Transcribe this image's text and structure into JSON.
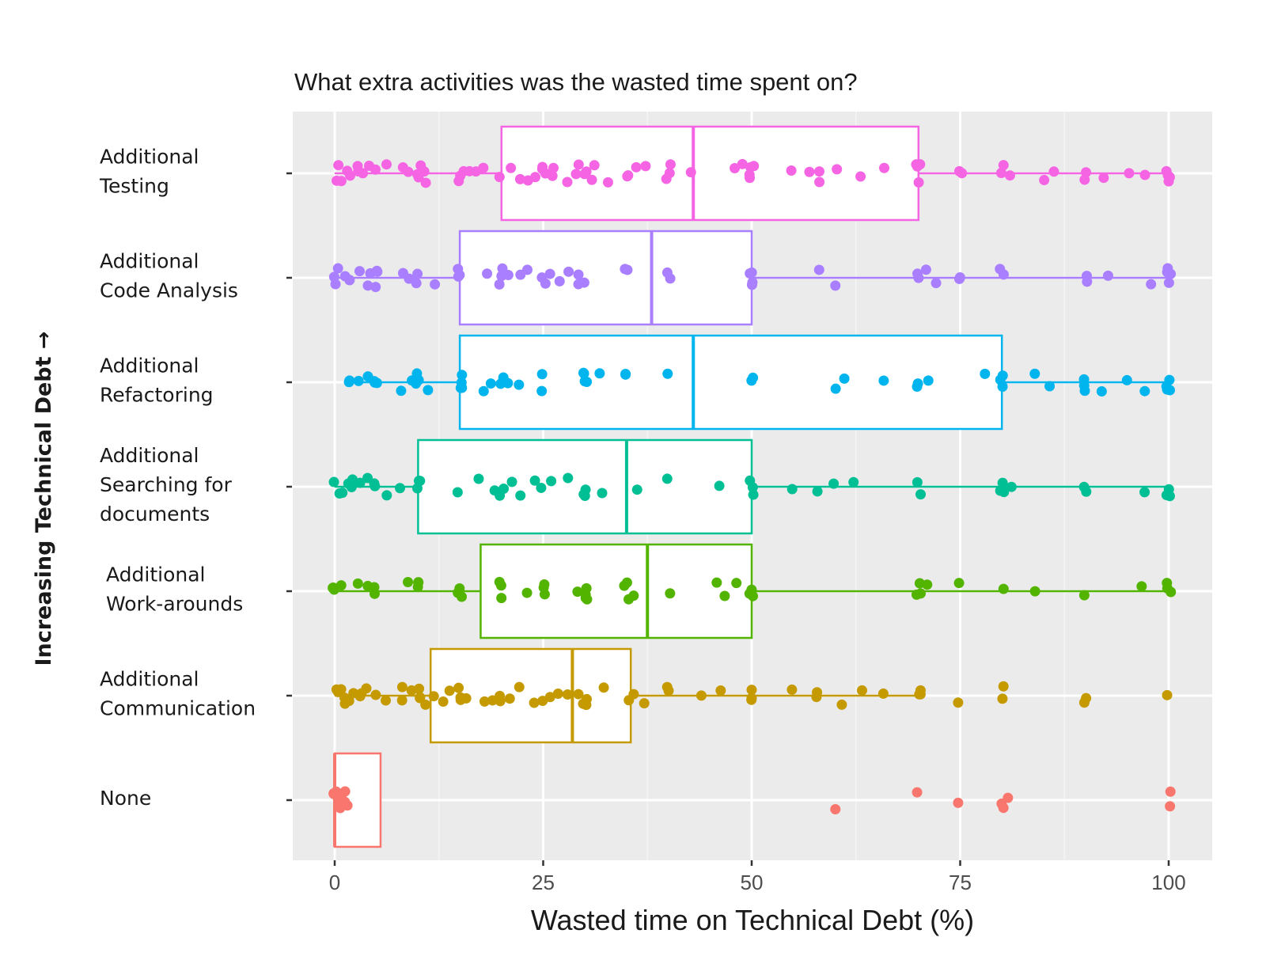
{
  "chart_data": {
    "type": "boxplot",
    "title": "What extra activities was the wasted time spent on?",
    "xlabel": "Wasted time on Technical Debt (%)",
    "ylabel": "Increasing Technical Debt →",
    "xlim": [
      -4,
      106
    ],
    "xticks": [
      0,
      25,
      50,
      75,
      100
    ],
    "xtick_labels": [
      "0",
      "25",
      "50",
      "75",
      "100"
    ],
    "grid": true,
    "legend": "none",
    "categories": [
      {
        "lines": [
          "Additional",
          "Testing"
        ],
        "color": "#F564E3",
        "q1": 20,
        "median": 43,
        "q3": 70,
        "whisker_low": 0,
        "whisker_high": 100,
        "points": [
          0,
          0.5,
          1,
          1.5,
          2,
          2.5,
          3,
          3.5,
          4,
          5,
          6,
          8,
          9,
          10,
          10,
          10.5,
          11,
          11,
          15,
          15,
          15.5,
          16,
          17,
          18,
          20,
          21,
          22,
          23,
          24,
          25,
          25,
          25,
          26,
          26,
          28,
          29,
          29,
          30,
          30,
          31,
          31,
          33,
          35,
          35,
          36,
          37,
          40,
          40,
          40,
          43,
          48,
          49,
          50,
          50,
          50,
          50,
          55,
          57,
          58,
          58,
          60,
          63,
          66,
          70,
          70,
          70,
          70,
          75,
          75,
          80,
          80,
          81,
          85,
          86,
          90,
          90,
          92,
          95,
          97,
          100,
          100,
          100,
          100
        ]
      },
      {
        "lines": [
          "Additional",
          "Code Analysis"
        ],
        "color": "#A97EFF",
        "q1": 15,
        "median": 38,
        "q3": 50,
        "whisker_low": 0,
        "whisker_high": 100,
        "points": [
          0,
          0,
          0.5,
          1,
          2,
          2,
          3,
          4,
          4,
          5,
          5,
          5,
          8,
          9,
          10,
          10,
          12,
          15,
          15,
          15,
          18,
          20,
          20,
          20,
          21,
          22,
          23,
          25,
          25,
          26,
          27,
          28,
          29,
          29,
          30,
          35,
          35,
          40,
          40,
          50,
          50,
          50,
          50,
          58,
          60,
          70,
          70,
          71,
          72,
          75,
          75,
          80,
          80,
          90,
          90,
          93,
          98,
          100,
          100,
          100,
          100
        ]
      },
      {
        "lines": [
          "Additional",
          "Refactoring"
        ],
        "color": "#00B5EE",
        "q1": 15,
        "median": 43,
        "q3": 80,
        "whisker_low": 2,
        "whisker_high": 100,
        "points": [
          2,
          2,
          3,
          4,
          5,
          5,
          5,
          8,
          9,
          10,
          10,
          10,
          11,
          15,
          15,
          15,
          15,
          18,
          19,
          20,
          20,
          21,
          22,
          25,
          25,
          30,
          30,
          30,
          30,
          32,
          35,
          35,
          40,
          50,
          50,
          60,
          61,
          66,
          70,
          70,
          71,
          78,
          80,
          80,
          80,
          84,
          86,
          90,
          90,
          90,
          92,
          95,
          97,
          100,
          100,
          100,
          100
        ]
      },
      {
        "lines": [
          "Additional",
          "Searching for",
          "documents"
        ],
        "color": "#00BF95",
        "q1": 10,
        "median": 35,
        "q3": 50,
        "whisker_low": 0,
        "whisker_high": 100,
        "points": [
          0,
          0.5,
          1,
          1.5,
          2,
          2,
          3,
          4,
          5,
          5,
          6,
          8,
          10,
          10,
          10,
          15,
          17,
          19,
          20,
          20,
          21,
          22,
          24,
          25,
          26,
          28,
          30,
          30,
          30,
          32,
          36,
          40,
          46,
          50,
          50,
          50,
          55,
          58,
          60,
          62,
          70,
          70,
          80,
          80,
          80,
          81,
          90,
          90,
          97,
          100,
          100,
          100
        ]
      },
      {
        "lines": [
          "Additional",
          "Work-arounds"
        ],
        "color": "#53B400",
        "q1": 17.5,
        "median": 37.5,
        "q3": 50,
        "whisker_low": 0,
        "whisker_high": 100,
        "points": [
          0,
          0,
          0,
          1,
          3,
          4,
          5,
          5,
          9,
          10,
          10,
          10,
          15,
          15,
          15,
          20,
          20,
          20,
          23,
          25,
          25,
          25,
          29,
          30,
          30,
          30,
          30,
          35,
          35,
          35,
          36,
          40,
          46,
          47,
          48,
          50,
          50,
          50,
          70,
          70,
          70,
          71,
          75,
          80,
          84,
          90,
          97,
          100,
          100,
          100
        ]
      },
      {
        "lines": [
          "Additional",
          "Communication"
        ],
        "color": "#C49A00",
        "q1": 11.5,
        "median": 28.5,
        "q3": 35.5,
        "whisker_low": 0,
        "whisker_high": 70,
        "points": [
          0,
          0.5,
          1,
          1,
          1.5,
          2,
          2.5,
          3,
          3,
          4,
          5,
          6,
          8,
          8,
          9,
          10,
          10,
          10,
          11,
          12,
          13,
          14,
          15,
          15,
          15,
          16,
          18,
          19,
          20,
          20,
          21,
          22,
          24,
          25,
          26,
          27,
          28,
          29,
          30,
          30,
          30,
          32,
          35,
          36,
          37,
          40,
          40,
          44,
          46,
          50,
          50,
          50,
          55,
          58,
          58,
          61,
          63,
          66,
          70,
          70,
          70,
          75,
          80,
          80,
          90,
          90,
          100
        ]
      },
      {
        "lines": [
          "None"
        ],
        "color": "#F8766D",
        "q1": 0,
        "median": 0,
        "q3": 5.5,
        "whisker_low": 0,
        "whisker_high": 5.5,
        "points": [
          0,
          0,
          0,
          0.2,
          0.4,
          0.5,
          0.6,
          0.8,
          1,
          1,
          1.2,
          1.5,
          60,
          70,
          75,
          80,
          80,
          81,
          100,
          100
        ]
      }
    ]
  }
}
